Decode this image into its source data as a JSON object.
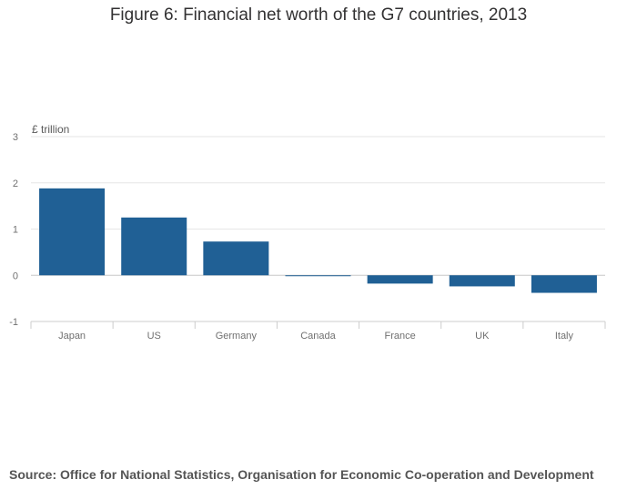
{
  "chart_data": {
    "type": "bar",
    "title": "Figure 6: Financial net worth of the G7 countries, 2013",
    "ylabel": "£ trillion",
    "xlabel": "",
    "categories": [
      "Japan",
      "US",
      "Germany",
      "Canada",
      "France",
      "UK",
      "Italy"
    ],
    "values": [
      1.88,
      1.25,
      0.73,
      -0.01,
      -0.18,
      -0.24,
      -0.38
    ],
    "ylim": [
      -1,
      3
    ],
    "yticks": [
      3,
      2,
      1,
      0,
      -1
    ],
    "grid": true,
    "bar_color": "#206095",
    "source": "Source: Office for National Statistics, Organisation for Economic Co-operation and Development"
  }
}
